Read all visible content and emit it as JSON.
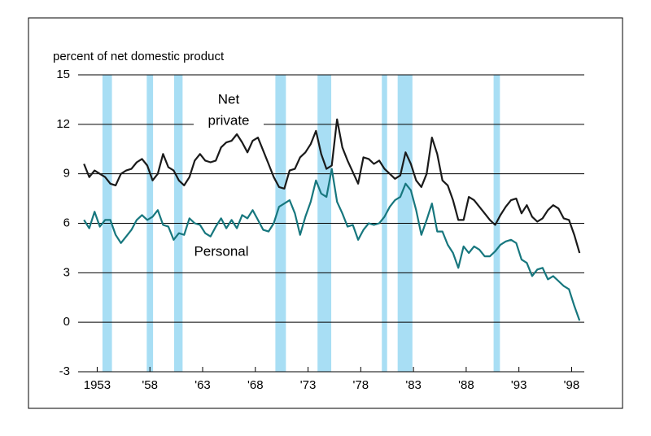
{
  "chart_data": {
    "type": "line",
    "y_label": "percent of net domestic product",
    "annotations": [
      "Net",
      "private",
      "Personal"
    ],
    "x": [
      1951.75,
      1952.25,
      1952.75,
      1953.25,
      1953.75,
      1954.25,
      1954.75,
      1955.25,
      1955.75,
      1956.25,
      1956.75,
      1957.25,
      1957.75,
      1958.25,
      1958.75,
      1959.25,
      1959.75,
      1960.25,
      1960.75,
      1961.25,
      1961.75,
      1962.25,
      1962.75,
      1963.25,
      1963.75,
      1964.25,
      1964.75,
      1965.25,
      1965.75,
      1966.25,
      1966.75,
      1967.25,
      1967.75,
      1968.25,
      1968.75,
      1969.25,
      1969.75,
      1970.25,
      1970.75,
      1971.25,
      1971.75,
      1972.25,
      1972.75,
      1973.25,
      1973.75,
      1974.25,
      1974.75,
      1975.25,
      1975.75,
      1976.25,
      1976.75,
      1977.25,
      1977.75,
      1978.25,
      1978.75,
      1979.25,
      1979.75,
      1980.25,
      1980.75,
      1981.25,
      1981.75,
      1982.25,
      1982.75,
      1983.25,
      1983.75,
      1984.25,
      1984.75,
      1985.25,
      1985.75,
      1986.25,
      1986.75,
      1987.25,
      1987.75,
      1988.25,
      1988.75,
      1989.25,
      1989.75,
      1990.25,
      1990.75,
      1991.25,
      1991.75,
      1992.25,
      1992.75,
      1993.25,
      1993.75,
      1994.25,
      1994.75,
      1995.25,
      1995.75,
      1996.25,
      1996.75,
      1997.25,
      1997.75,
      1998.25,
      1998.75
    ],
    "series": [
      {
        "name": "Net private",
        "color": "#1a1a1a",
        "values": [
          9.6,
          8.8,
          9.2,
          9.0,
          8.8,
          8.4,
          8.3,
          9.0,
          9.2,
          9.3,
          9.7,
          9.9,
          9.5,
          8.6,
          9.0,
          10.2,
          9.4,
          9.2,
          8.6,
          8.3,
          8.8,
          9.8,
          10.2,
          9.8,
          9.7,
          9.8,
          10.6,
          10.9,
          11.0,
          11.4,
          10.9,
          10.3,
          11.0,
          11.2,
          10.4,
          9.6,
          8.8,
          8.2,
          8.1,
          9.2,
          9.3,
          10.0,
          10.3,
          10.8,
          11.6,
          10.2,
          9.3,
          9.5,
          12.3,
          10.6,
          9.8,
          9.1,
          8.4,
          10.0,
          9.9,
          9.6,
          9.8,
          9.3,
          9.0,
          8.7,
          8.9,
          10.3,
          9.6,
          8.6,
          8.2,
          9.0,
          11.2,
          10.2,
          8.6,
          8.3,
          7.4,
          6.2,
          6.2,
          7.6,
          7.4,
          7.0,
          6.6,
          6.2,
          5.9,
          6.5,
          7.0,
          7.4,
          7.5,
          6.6,
          7.1,
          6.4,
          6.1,
          6.3,
          6.8,
          7.1,
          6.9,
          6.3,
          6.2,
          5.3,
          4.2
        ]
      },
      {
        "name": "Personal",
        "color": "#17777e",
        "values": [
          6.2,
          5.7,
          6.7,
          5.8,
          6.2,
          6.2,
          5.3,
          4.8,
          5.2,
          5.6,
          6.2,
          6.5,
          6.2,
          6.4,
          6.8,
          5.9,
          5.8,
          5.0,
          5.4,
          5.3,
          6.3,
          6.0,
          5.9,
          5.4,
          5.2,
          5.8,
          6.3,
          5.7,
          6.2,
          5.7,
          6.5,
          6.3,
          6.8,
          6.2,
          5.6,
          5.5,
          6.0,
          7.0,
          7.2,
          7.4,
          6.6,
          5.3,
          6.4,
          7.3,
          8.6,
          7.8,
          7.6,
          9.3,
          7.3,
          6.6,
          5.8,
          5.9,
          5.0,
          5.6,
          6.0,
          5.9,
          6.0,
          6.4,
          7.0,
          7.4,
          7.6,
          8.4,
          8.0,
          6.8,
          5.3,
          6.2,
          7.2,
          5.5,
          5.5,
          4.7,
          4.2,
          3.3,
          4.6,
          4.2,
          4.6,
          4.4,
          4.0,
          4.0,
          4.3,
          4.7,
          4.9,
          5.0,
          4.8,
          3.8,
          3.6,
          2.8,
          3.2,
          3.3,
          2.6,
          2.8,
          2.5,
          2.2,
          2.0,
          1.0,
          0.1
        ]
      }
    ],
    "shading": [
      [
        1953.5,
        1954.4
      ],
      [
        1957.7,
        1958.3
      ],
      [
        1960.3,
        1961.1
      ],
      [
        1969.9,
        1970.9
      ],
      [
        1973.9,
        1975.2
      ],
      [
        1980.0,
        1980.5
      ],
      [
        1981.5,
        1982.9
      ],
      [
        1990.6,
        1991.2
      ]
    ],
    "shading_color": "#a8def4",
    "xlim": [
      1951.5,
      1999.2
    ],
    "xticks": [
      {
        "value": 1953,
        "label": "1953"
      },
      {
        "value": 1958,
        "label": "'58"
      },
      {
        "value": 1963,
        "label": "'63"
      },
      {
        "value": 1968,
        "label": "'68"
      },
      {
        "value": 1973,
        "label": "'73"
      },
      {
        "value": 1978,
        "label": "'78"
      },
      {
        "value": 1983,
        "label": "'83"
      },
      {
        "value": 1988,
        "label": "'88"
      },
      {
        "value": 1993,
        "label": "'93"
      },
      {
        "value": 1998,
        "label": "'98"
      }
    ],
    "ylim": [
      -3,
      15
    ],
    "yticks": [
      -3,
      0,
      3,
      6,
      9,
      12,
      15
    ],
    "grid": true
  }
}
